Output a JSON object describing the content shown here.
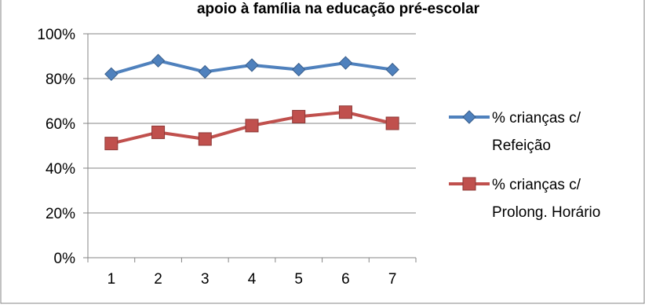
{
  "chart_data": {
    "type": "line",
    "title": "apoio à família na educação pré-escolar",
    "xlabel": "",
    "ylabel": "",
    "categories": [
      "1",
      "2",
      "3",
      "4",
      "5",
      "6",
      "7"
    ],
    "ylim": [
      0,
      1
    ],
    "y_ticks": [
      "0%",
      "20%",
      "40%",
      "60%",
      "80%",
      "100%"
    ],
    "grid": true,
    "legend_position": "right",
    "series": [
      {
        "name": "% crianças c/ Refeição",
        "legend_lines": [
          "% crianças c/",
          "Refeição"
        ],
        "values": [
          0.82,
          0.88,
          0.83,
          0.86,
          0.84,
          0.87,
          0.84
        ],
        "color": "#4F81BD",
        "marker": "diamond"
      },
      {
        "name": "% crianças c/ Prolong. Horário",
        "legend_lines": [
          "% crianças c/",
          "Prolong. Horário"
        ],
        "values": [
          0.51,
          0.56,
          0.53,
          0.59,
          0.63,
          0.65,
          0.6
        ],
        "color": "#C0504D",
        "marker": "square"
      }
    ]
  }
}
